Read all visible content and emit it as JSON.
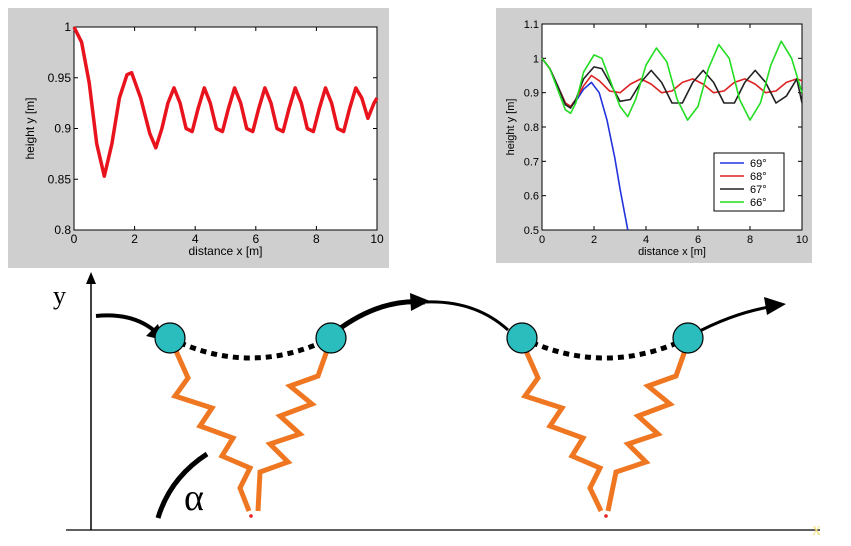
{
  "chart_data": [
    {
      "type": "line",
      "xlabel": "distance x [m]",
      "ylabel": "height y [m]",
      "xlim": [
        0,
        10
      ],
      "ylim": [
        0.8,
        1.0
      ],
      "xticks": [
        "0",
        "2",
        "4",
        "6",
        "8",
        "10"
      ],
      "yticks": [
        "0.8",
        "0.85",
        "0.9",
        "0.95",
        "1"
      ],
      "grid": false,
      "series": [
        {
          "color": "#e8131c",
          "x": [
            0,
            0.25,
            0.5,
            0.75,
            1.0,
            1.25,
            1.5,
            1.75,
            1.9,
            2.2,
            2.5,
            2.7,
            2.9,
            3.1,
            3.3,
            3.5,
            3.7,
            3.9,
            4.1,
            4.3,
            4.5,
            4.7,
            4.9,
            5.1,
            5.3,
            5.5,
            5.7,
            5.9,
            6.1,
            6.3,
            6.5,
            6.7,
            6.9,
            7.1,
            7.3,
            7.5,
            7.7,
            7.9,
            8.1,
            8.3,
            8.5,
            8.7,
            8.9,
            9.1,
            9.3,
            9.5,
            9.7,
            9.9,
            10.0
          ],
          "y": [
            1.0,
            0.985,
            0.945,
            0.885,
            0.853,
            0.885,
            0.93,
            0.953,
            0.955,
            0.93,
            0.895,
            0.881,
            0.9,
            0.925,
            0.94,
            0.925,
            0.9,
            0.897,
            0.92,
            0.94,
            0.925,
            0.9,
            0.897,
            0.92,
            0.94,
            0.925,
            0.9,
            0.897,
            0.92,
            0.94,
            0.925,
            0.9,
            0.897,
            0.92,
            0.94,
            0.925,
            0.9,
            0.897,
            0.92,
            0.94,
            0.925,
            0.9,
            0.897,
            0.92,
            0.94,
            0.93,
            0.91,
            0.925,
            0.93
          ]
        }
      ]
    },
    {
      "type": "line",
      "xlabel": "distance x [m]",
      "ylabel": "height y [m]",
      "xlim": [
        0,
        10
      ],
      "ylim": [
        0.5,
        1.1
      ],
      "xticks": [
        "0",
        "2",
        "4",
        "6",
        "8",
        "10"
      ],
      "yticks": [
        "0.5",
        "0.6",
        "0.7",
        "0.8",
        "0.9",
        "1",
        "1.1"
      ],
      "grid": false,
      "legend_position": "bottom-right",
      "series": [
        {
          "name": "69°",
          "color": "#2233dd",
          "x": [
            0,
            0.3,
            0.6,
            0.9,
            1.1,
            1.3,
            1.6,
            1.9,
            2.2,
            2.5,
            2.8,
            3.0,
            3.2,
            3.3
          ],
          "y": [
            1.0,
            0.97,
            0.92,
            0.87,
            0.86,
            0.875,
            0.91,
            0.93,
            0.9,
            0.82,
            0.71,
            0.62,
            0.54,
            0.5
          ]
        },
        {
          "name": "68°",
          "color": "#dd2222",
          "x": [
            0,
            0.3,
            0.6,
            0.9,
            1.1,
            1.3,
            1.6,
            1.9,
            2.2,
            2.6,
            3.0,
            3.4,
            3.8,
            4.2,
            4.6,
            5.0,
            5.4,
            5.8,
            6.2,
            6.6,
            7.0,
            7.4,
            7.8,
            8.2,
            8.6,
            9.0,
            9.4,
            9.8,
            10.0
          ],
          "y": [
            1.0,
            0.97,
            0.92,
            0.87,
            0.86,
            0.88,
            0.92,
            0.95,
            0.935,
            0.905,
            0.9,
            0.925,
            0.94,
            0.925,
            0.9,
            0.905,
            0.93,
            0.94,
            0.925,
            0.9,
            0.905,
            0.93,
            0.94,
            0.925,
            0.9,
            0.905,
            0.93,
            0.94,
            0.935
          ]
        },
        {
          "name": "67°",
          "color": "#222222",
          "x": [
            0,
            0.3,
            0.6,
            0.9,
            1.1,
            1.3,
            1.6,
            2.0,
            2.3,
            2.6,
            3.0,
            3.4,
            3.8,
            4.2,
            4.6,
            5.0,
            5.4,
            5.8,
            6.2,
            6.6,
            7.0,
            7.4,
            7.8,
            8.2,
            8.6,
            9.0,
            9.4,
            9.8,
            10.0
          ],
          "y": [
            1.0,
            0.97,
            0.92,
            0.865,
            0.855,
            0.88,
            0.94,
            0.975,
            0.97,
            0.93,
            0.875,
            0.88,
            0.93,
            0.965,
            0.93,
            0.87,
            0.87,
            0.93,
            0.965,
            0.93,
            0.87,
            0.87,
            0.93,
            0.965,
            0.93,
            0.87,
            0.89,
            0.94,
            0.87
          ]
        },
        {
          "name": "66°",
          "color": "#22dd22",
          "x": [
            0,
            0.3,
            0.6,
            0.9,
            1.1,
            1.3,
            1.6,
            2.0,
            2.3,
            2.6,
            3.0,
            3.3,
            3.6,
            4.0,
            4.4,
            4.8,
            5.2,
            5.6,
            6.0,
            6.4,
            6.8,
            7.2,
            7.6,
            8.0,
            8.4,
            8.8,
            9.2,
            9.6,
            10.0
          ],
          "y": [
            1.0,
            0.97,
            0.91,
            0.85,
            0.84,
            0.87,
            0.96,
            1.01,
            1.0,
            0.94,
            0.86,
            0.83,
            0.88,
            0.98,
            1.03,
            0.99,
            0.88,
            0.82,
            0.86,
            0.97,
            1.04,
            1.0,
            0.88,
            0.82,
            0.87,
            0.98,
            1.05,
            1.0,
            0.9
          ]
        }
      ]
    }
  ],
  "diagram": {
    "y_axis_label": "y",
    "x_axis_label": "x",
    "angle_label": "α",
    "colors": {
      "ball": "#2bbdbd",
      "spring": "#f07722",
      "arc": "#000000",
      "foot": "#e82020",
      "x_label": "#f5e07a"
    }
  }
}
